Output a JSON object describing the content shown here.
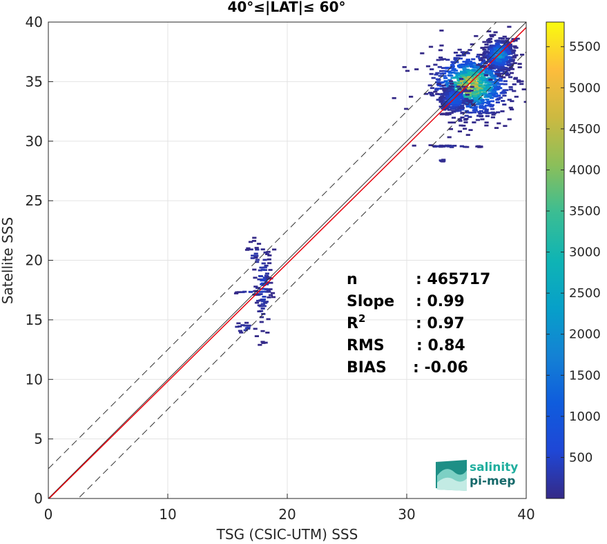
{
  "chart_data": {
    "type": "heatmap",
    "title": "40°≤|LAT|≤ 60°",
    "xlabel": "TSG (CSIC-UTM) SSS",
    "ylabel": "Satellite SSS",
    "xlim": [
      0,
      40
    ],
    "ylim": [
      0,
      40
    ],
    "xticks": [
      "0",
      "10",
      "20",
      "30",
      "40"
    ],
    "yticks": [
      "0",
      "5",
      "10",
      "15",
      "20",
      "25",
      "30",
      "35",
      "40"
    ],
    "grid": true,
    "colorbar": {
      "range": [
        0,
        5800
      ],
      "ticks": [
        "500",
        "1000",
        "1500",
        "2000",
        "2500",
        "3000",
        "3500",
        "4000",
        "4500",
        "5000",
        "5500"
      ],
      "colormap": "parula"
    },
    "lines": [
      {
        "kind": "identity",
        "color": "#333333",
        "style": "solid"
      },
      {
        "kind": "regression",
        "slope": 0.99,
        "intercept": -0.06,
        "color": "#e8000b",
        "style": "solid"
      },
      {
        "kind": "identity+2.5",
        "offset": 2.5,
        "color": "#333333",
        "style": "dashed"
      },
      {
        "kind": "identity-2.5",
        "offset": -2.5,
        "color": "#333333",
        "style": "dashed"
      }
    ],
    "stats": [
      {
        "label": "n",
        "value": ": 465717"
      },
      {
        "label": "Slope",
        "value": ": 0.99"
      },
      {
        "label": "R",
        "sup": "2",
        "value": ": 0.97"
      },
      {
        "label": "RMS",
        "value": ": 0.84"
      },
      {
        "label": "BIAS",
        "value": ": -0.06"
      }
    ],
    "clusters": [
      {
        "x": 35.2,
        "y": 34.8,
        "sx": 1.6,
        "sy": 1.3,
        "n": 900,
        "peak": 5800
      },
      {
        "x": 37.6,
        "y": 37.3,
        "sx": 0.6,
        "sy": 0.7,
        "n": 380,
        "peak": 2600
      },
      {
        "x": 33.8,
        "y": 33.6,
        "sx": 0.6,
        "sy": 0.6,
        "n": 220,
        "peak": 1500
      },
      {
        "x": 33.5,
        "y": 29.65,
        "sx": 1.6,
        "sy": 0.05,
        "n": 30,
        "peak": 250
      },
      {
        "x": 32.8,
        "y": 28.45,
        "sx": 0.3,
        "sy": 0.05,
        "n": 6,
        "peak": 250
      },
      {
        "x": 17.8,
        "y": 18.0,
        "sx": 0.35,
        "sy": 1.8,
        "n": 90,
        "peak": 600
      },
      {
        "x": 16.6,
        "y": 17.4,
        "sx": 0.5,
        "sy": 0.1,
        "n": 10,
        "peak": 400
      },
      {
        "x": 16.2,
        "y": 14.4,
        "sx": 0.5,
        "sy": 0.25,
        "n": 14,
        "peak": 400
      },
      {
        "x": 17.2,
        "y": 20.5,
        "sx": 0.4,
        "sy": 0.6,
        "n": 14,
        "peak": 400
      },
      {
        "x": 18.0,
        "y": 13.0,
        "sx": 0.1,
        "sy": 0.1,
        "n": 2,
        "peak": 250
      }
    ]
  },
  "logo": {
    "line1": "salinity",
    "line2": "pi-mep"
  }
}
